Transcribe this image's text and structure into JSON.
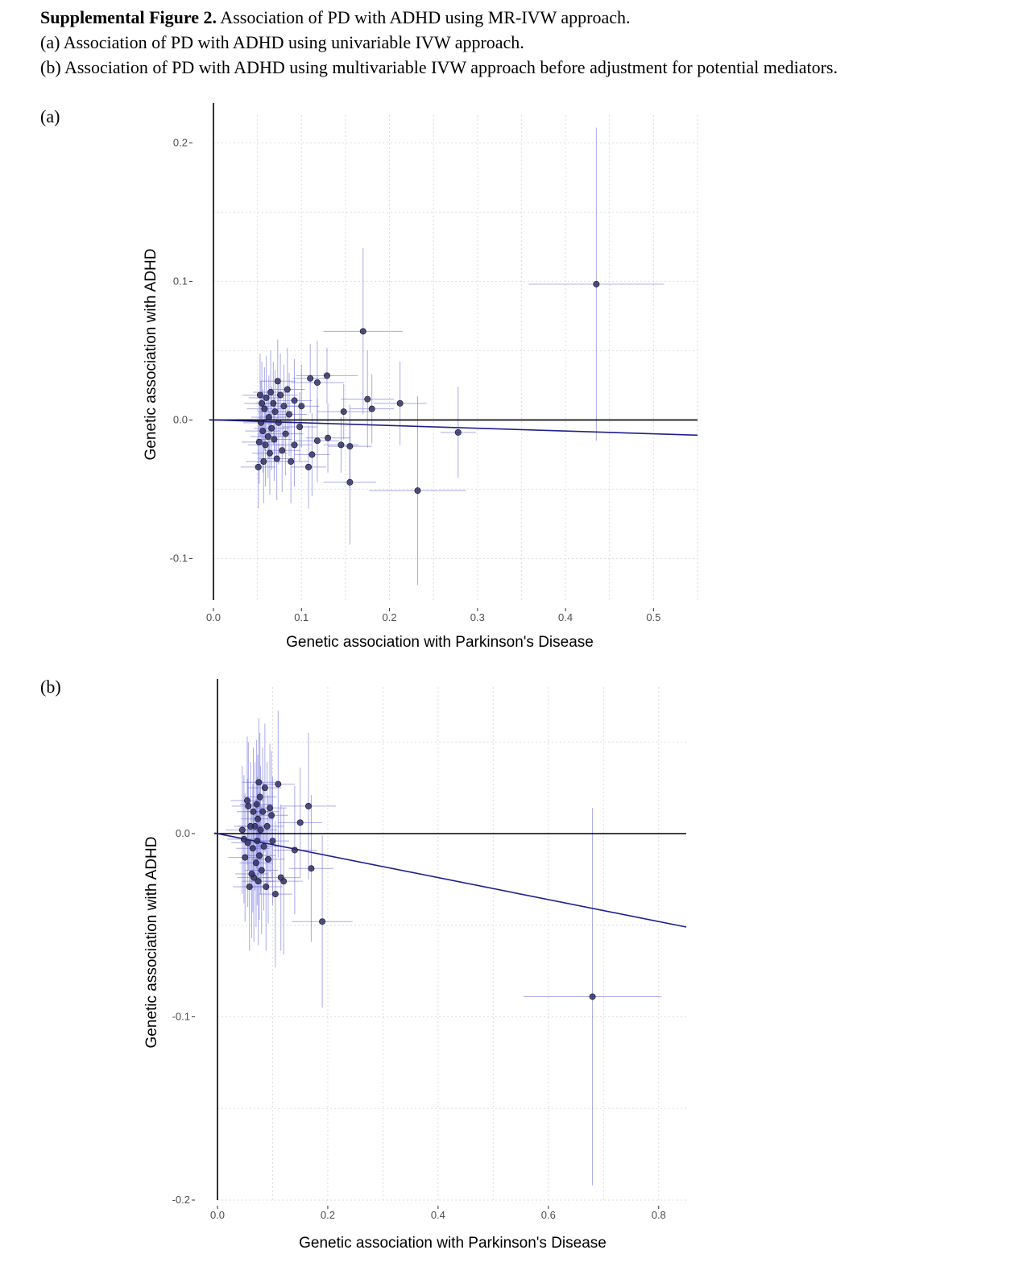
{
  "caption": {
    "title_bold": "Supplemental Figure 2.",
    "title_rest": " Association of PD with ADHD using MR-IVW approach.",
    "line_a": "(a) Association of PD with ADHD using univariable IVW approach.",
    "line_b": "(b) Association of PD with ADHD using multivariable IVW approach before adjustment for potential mediators."
  },
  "panels": {
    "a_label": "(a)",
    "b_label": "(b)"
  },
  "colors": {
    "point": "#2b2b55",
    "errorbar": "#6464d8",
    "fitline": "#1f1f8a",
    "grid": "#dddddd",
    "axis": "#000000"
  },
  "chart_data": [
    {
      "type": "scatter",
      "title": "",
      "xlabel": "Genetic association with Parkinson's Disease",
      "ylabel": "Genetic association with ADHD",
      "xlim": [
        0,
        0.55
      ],
      "ylim": [
        -0.13,
        0.22
      ],
      "xticks": [
        0.0,
        0.1,
        0.2,
        0.3,
        0.4,
        0.5
      ],
      "yticks": [
        -0.1,
        0.0,
        0.1,
        0.2
      ],
      "xtick_labels": [
        "0.0",
        "0.1",
        "0.2",
        "0.3",
        "0.4",
        "0.5"
      ],
      "ytick_labels": [
        "-0.1",
        "0.0",
        "0.1",
        "0.2"
      ],
      "grid": true,
      "ivw_line": {
        "intercept": 0,
        "slope": -0.02
      },
      "points": [
        {
          "x": 0.435,
          "y": 0.098,
          "xerr": 0.077,
          "yerr": 0.113
        },
        {
          "x": 0.17,
          "y": 0.064,
          "xerr": 0.045,
          "yerr": 0.06
        },
        {
          "x": 0.278,
          "y": -0.009,
          "xerr": 0.02,
          "yerr": 0.033
        },
        {
          "x": 0.232,
          "y": -0.051,
          "xerr": 0.055,
          "yerr": 0.068
        },
        {
          "x": 0.212,
          "y": 0.012,
          "xerr": 0.03,
          "yerr": 0.03
        },
        {
          "x": 0.175,
          "y": 0.015,
          "xerr": 0.03,
          "yerr": 0.035
        },
        {
          "x": 0.18,
          "y": 0.008,
          "xerr": 0.025,
          "yerr": 0.025
        },
        {
          "x": 0.155,
          "y": -0.045,
          "xerr": 0.03,
          "yerr": 0.045
        },
        {
          "x": 0.155,
          "y": -0.019,
          "xerr": 0.025,
          "yerr": 0.03
        },
        {
          "x": 0.145,
          "y": -0.018,
          "xerr": 0.02,
          "yerr": 0.02
        },
        {
          "x": 0.148,
          "y": 0.006,
          "xerr": 0.03,
          "yerr": 0.02
        },
        {
          "x": 0.129,
          "y": 0.032,
          "xerr": 0.035,
          "yerr": 0.02
        },
        {
          "x": 0.13,
          "y": -0.013,
          "xerr": 0.025,
          "yerr": 0.025
        },
        {
          "x": 0.118,
          "y": 0.027,
          "xerr": 0.03,
          "yerr": 0.03
        },
        {
          "x": 0.11,
          "y": 0.03,
          "xerr": 0.02,
          "yerr": 0.025
        },
        {
          "x": 0.118,
          "y": -0.015,
          "xerr": 0.025,
          "yerr": 0.03
        },
        {
          "x": 0.112,
          "y": -0.025,
          "xerr": 0.02,
          "yerr": 0.03
        },
        {
          "x": 0.108,
          "y": -0.034,
          "xerr": 0.02,
          "yerr": 0.03
        },
        {
          "x": 0.1,
          "y": 0.01,
          "xerr": 0.02,
          "yerr": 0.03
        },
        {
          "x": 0.098,
          "y": -0.005,
          "xerr": 0.02,
          "yerr": 0.025
        },
        {
          "x": 0.092,
          "y": 0.014,
          "xerr": 0.02,
          "yerr": 0.03
        },
        {
          "x": 0.092,
          "y": -0.018,
          "xerr": 0.02,
          "yerr": 0.03
        },
        {
          "x": 0.088,
          "y": -0.03,
          "xerr": 0.02,
          "yerr": 0.03
        },
        {
          "x": 0.086,
          "y": 0.004,
          "xerr": 0.02,
          "yerr": 0.03
        },
        {
          "x": 0.084,
          "y": 0.022,
          "xerr": 0.02,
          "yerr": 0.03
        },
        {
          "x": 0.082,
          "y": -0.01,
          "xerr": 0.02,
          "yerr": 0.03
        },
        {
          "x": 0.08,
          "y": 0.01,
          "xerr": 0.02,
          "yerr": 0.03
        },
        {
          "x": 0.078,
          "y": -0.022,
          "xerr": 0.02,
          "yerr": 0.03
        },
        {
          "x": 0.076,
          "y": 0.018,
          "xerr": 0.02,
          "yerr": 0.03
        },
        {
          "x": 0.074,
          "y": -0.002,
          "xerr": 0.02,
          "yerr": 0.03
        },
        {
          "x": 0.073,
          "y": 0.028,
          "xerr": 0.02,
          "yerr": 0.03
        },
        {
          "x": 0.072,
          "y": -0.028,
          "xerr": 0.02,
          "yerr": 0.03
        },
        {
          "x": 0.07,
          "y": 0.006,
          "xerr": 0.02,
          "yerr": 0.03
        },
        {
          "x": 0.069,
          "y": -0.014,
          "xerr": 0.02,
          "yerr": 0.03
        },
        {
          "x": 0.068,
          "y": 0.012,
          "xerr": 0.02,
          "yerr": 0.03
        },
        {
          "x": 0.066,
          "y": -0.006,
          "xerr": 0.02,
          "yerr": 0.03
        },
        {
          "x": 0.065,
          "y": 0.02,
          "xerr": 0.02,
          "yerr": 0.03
        },
        {
          "x": 0.064,
          "y": -0.024,
          "xerr": 0.02,
          "yerr": 0.03
        },
        {
          "x": 0.063,
          "y": 0.002,
          "xerr": 0.02,
          "yerr": 0.03
        },
        {
          "x": 0.062,
          "y": -0.012,
          "xerr": 0.02,
          "yerr": 0.03
        },
        {
          "x": 0.06,
          "y": 0.016,
          "xerr": 0.02,
          "yerr": 0.03
        },
        {
          "x": 0.059,
          "y": -0.018,
          "xerr": 0.02,
          "yerr": 0.03
        },
        {
          "x": 0.058,
          "y": 0.008,
          "xerr": 0.02,
          "yerr": 0.03
        },
        {
          "x": 0.057,
          "y": -0.03,
          "xerr": 0.02,
          "yerr": 0.03
        },
        {
          "x": 0.056,
          "y": -0.008,
          "xerr": 0.02,
          "yerr": 0.03
        },
        {
          "x": 0.055,
          "y": 0.012,
          "xerr": 0.02,
          "yerr": 0.03
        },
        {
          "x": 0.054,
          "y": -0.002,
          "xerr": 0.02,
          "yerr": 0.03
        },
        {
          "x": 0.053,
          "y": 0.018,
          "xerr": 0.02,
          "yerr": 0.03
        },
        {
          "x": 0.052,
          "y": -0.016,
          "xerr": 0.02,
          "yerr": 0.03
        },
        {
          "x": 0.051,
          "y": -0.034,
          "xerr": 0.02,
          "yerr": 0.03
        }
      ]
    },
    {
      "type": "scatter",
      "title": "",
      "xlabel": "Genetic association with Parkinson's Disease",
      "ylabel": "Genetic association with ADHD",
      "xlim": [
        0,
        0.85
      ],
      "ylim": [
        -0.2,
        0.08
      ],
      "xticks": [
        0.0,
        0.2,
        0.4,
        0.6,
        0.8
      ],
      "yticks": [
        -0.2,
        -0.1,
        0.0
      ],
      "xtick_labels": [
        "0.0",
        "0.2",
        "0.4",
        "0.6",
        "0.8"
      ],
      "ytick_labels": [
        "-0.2",
        "-0.1",
        "0.0"
      ],
      "grid": true,
      "ivw_line": {
        "intercept": 0,
        "slope": -0.06
      },
      "points": [
        {
          "x": 0.68,
          "y": -0.089,
          "xerr": 0.125,
          "yerr": 0.103
        },
        {
          "x": 0.19,
          "y": -0.048,
          "xerr": 0.055,
          "yerr": 0.047
        },
        {
          "x": 0.165,
          "y": 0.015,
          "xerr": 0.05,
          "yerr": 0.04
        },
        {
          "x": 0.17,
          "y": -0.019,
          "xerr": 0.04,
          "yerr": 0.04
        },
        {
          "x": 0.15,
          "y": 0.006,
          "xerr": 0.04,
          "yerr": 0.03
        },
        {
          "x": 0.14,
          "y": -0.009,
          "xerr": 0.04,
          "yerr": 0.035
        },
        {
          "x": 0.12,
          "y": -0.026,
          "xerr": 0.035,
          "yerr": 0.04
        },
        {
          "x": 0.115,
          "y": -0.024,
          "xerr": 0.035,
          "yerr": 0.04
        },
        {
          "x": 0.11,
          "y": 0.027,
          "xerr": 0.03,
          "yerr": 0.04
        },
        {
          "x": 0.105,
          "y": -0.033,
          "xerr": 0.03,
          "yerr": 0.04
        },
        {
          "x": 0.1,
          "y": -0.004,
          "xerr": 0.03,
          "yerr": 0.035
        },
        {
          "x": 0.098,
          "y": 0.01,
          "xerr": 0.03,
          "yerr": 0.035
        },
        {
          "x": 0.095,
          "y": 0.014,
          "xerr": 0.03,
          "yerr": 0.035
        },
        {
          "x": 0.092,
          "y": -0.014,
          "xerr": 0.03,
          "yerr": 0.035
        },
        {
          "x": 0.09,
          "y": 0.004,
          "xerr": 0.03,
          "yerr": 0.035
        },
        {
          "x": 0.088,
          "y": -0.029,
          "xerr": 0.03,
          "yerr": 0.035
        },
        {
          "x": 0.086,
          "y": 0.025,
          "xerr": 0.03,
          "yerr": 0.035
        },
        {
          "x": 0.084,
          "y": -0.007,
          "xerr": 0.03,
          "yerr": 0.035
        },
        {
          "x": 0.082,
          "y": 0.012,
          "xerr": 0.03,
          "yerr": 0.035
        },
        {
          "x": 0.08,
          "y": -0.02,
          "xerr": 0.03,
          "yerr": 0.035
        },
        {
          "x": 0.078,
          "y": 0.002,
          "xerr": 0.03,
          "yerr": 0.035
        },
        {
          "x": 0.077,
          "y": 0.02,
          "xerr": 0.03,
          "yerr": 0.035
        },
        {
          "x": 0.076,
          "y": -0.012,
          "xerr": 0.03,
          "yerr": 0.035
        },
        {
          "x": 0.075,
          "y": 0.028,
          "xerr": 0.03,
          "yerr": 0.035
        },
        {
          "x": 0.074,
          "y": -0.026,
          "xerr": 0.03,
          "yerr": 0.035
        },
        {
          "x": 0.073,
          "y": 0.008,
          "xerr": 0.03,
          "yerr": 0.035
        },
        {
          "x": 0.072,
          "y": -0.004,
          "xerr": 0.03,
          "yerr": 0.035
        },
        {
          "x": 0.071,
          "y": 0.016,
          "xerr": 0.03,
          "yerr": 0.035
        },
        {
          "x": 0.07,
          "y": -0.016,
          "xerr": 0.03,
          "yerr": 0.035
        },
        {
          "x": 0.068,
          "y": 0.004,
          "xerr": 0.03,
          "yerr": 0.035
        },
        {
          "x": 0.066,
          "y": -0.024,
          "xerr": 0.03,
          "yerr": 0.035
        },
        {
          "x": 0.065,
          "y": 0.012,
          "xerr": 0.03,
          "yerr": 0.035
        },
        {
          "x": 0.064,
          "y": -0.008,
          "xerr": 0.03,
          "yerr": 0.035
        },
        {
          "x": 0.062,
          "y": -0.022,
          "xerr": 0.03,
          "yerr": 0.035
        },
        {
          "x": 0.06,
          "y": 0.004,
          "xerr": 0.03,
          "yerr": 0.035
        },
        {
          "x": 0.058,
          "y": -0.029,
          "xerr": 0.03,
          "yerr": 0.035
        },
        {
          "x": 0.056,
          "y": 0.015,
          "xerr": 0.03,
          "yerr": 0.035
        },
        {
          "x": 0.055,
          "y": -0.005,
          "xerr": 0.03,
          "yerr": 0.035
        },
        {
          "x": 0.054,
          "y": 0.018,
          "xerr": 0.03,
          "yerr": 0.035
        },
        {
          "x": 0.05,
          "y": -0.013,
          "xerr": 0.03,
          "yerr": 0.035
        },
        {
          "x": 0.048,
          "y": -0.003,
          "xerr": 0.03,
          "yerr": 0.035
        },
        {
          "x": 0.045,
          "y": 0.002,
          "xerr": 0.03,
          "yerr": 0.035
        }
      ]
    }
  ]
}
